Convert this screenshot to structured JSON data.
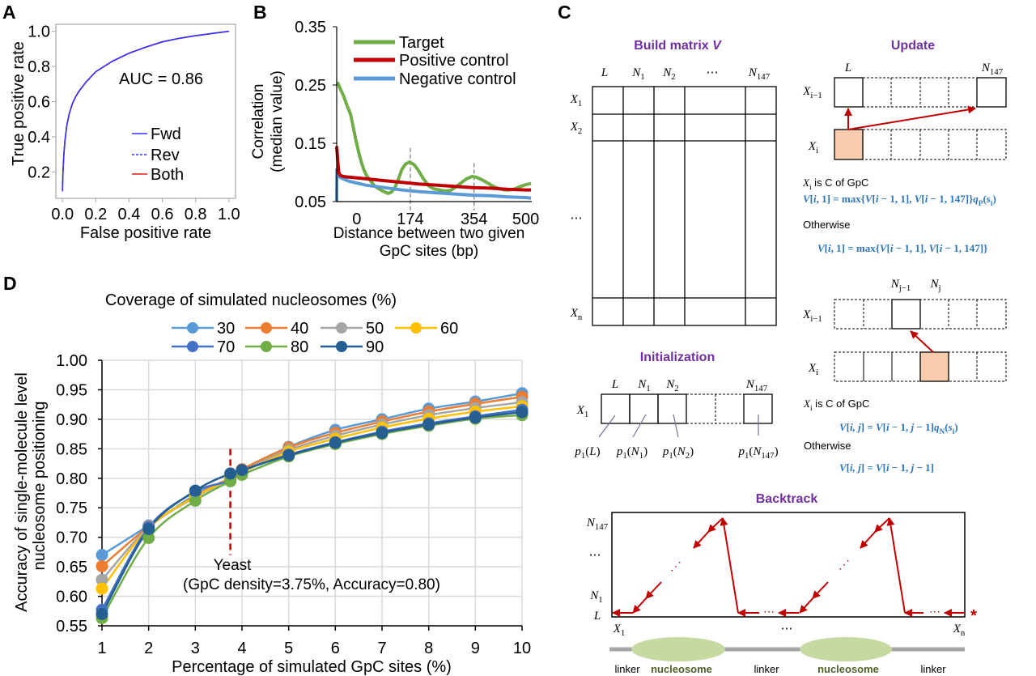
{
  "panel_labels": {
    "A": "A",
    "B": "B",
    "C": "C",
    "D": "D"
  },
  "chart_data": [
    {
      "panel": "A",
      "type": "line",
      "title": "",
      "xlabel": "False positive rate",
      "ylabel": "True positive rate",
      "xlim": [
        -0.04,
        1.04
      ],
      "ylim": [
        0.05,
        1.04
      ],
      "xticks": [
        0,
        0.2,
        0.4,
        0.6,
        0.8,
        1.0
      ],
      "xtick_labels": [
        "0.0",
        "0.2",
        "0.4",
        "0.6",
        "0.8",
        "1.0"
      ],
      "yticks": [
        0.2,
        0.4,
        0.6,
        0.8,
        1.0
      ],
      "ytick_labels": [
        "0.2",
        "0.4",
        "0.6",
        "0.8",
        "1.0"
      ],
      "grid": false,
      "annotation": "AUC = 0.86",
      "legend": {
        "placement": "center-right"
      },
      "series": [
        {
          "name": "Fwd",
          "color": "#3333FF",
          "style": "solid",
          "x": [
            0,
            0.003,
            0.008,
            0.015,
            0.025,
            0.04,
            0.06,
            0.08,
            0.1,
            0.14,
            0.2,
            0.3,
            0.4,
            0.5,
            0.6,
            0.7,
            0.8,
            0.9,
            1.0
          ],
          "y": [
            0.09,
            0.2,
            0.3,
            0.38,
            0.46,
            0.53,
            0.59,
            0.63,
            0.66,
            0.71,
            0.77,
            0.83,
            0.875,
            0.91,
            0.94,
            0.96,
            0.975,
            0.988,
            1.0
          ]
        },
        {
          "name": "Rev",
          "color": "#3333FF",
          "style": "dashed",
          "x": [
            0,
            0.003,
            0.008,
            0.015,
            0.025,
            0.04,
            0.06,
            0.08,
            0.1,
            0.14,
            0.2,
            0.3,
            0.4,
            0.5,
            0.6,
            0.7,
            0.8,
            0.9,
            1.0
          ],
          "y": [
            0.09,
            0.2,
            0.3,
            0.38,
            0.46,
            0.53,
            0.59,
            0.63,
            0.66,
            0.71,
            0.77,
            0.83,
            0.875,
            0.91,
            0.94,
            0.96,
            0.975,
            0.988,
            1.0
          ]
        },
        {
          "name": "Both",
          "color": "#E31A1C",
          "style": "solid",
          "x": [
            0,
            0.003,
            0.008,
            0.015,
            0.025,
            0.04,
            0.06,
            0.08,
            0.1,
            0.14,
            0.2,
            0.3,
            0.4,
            0.5,
            0.6,
            0.7,
            0.8,
            0.9,
            1.0
          ],
          "y": [
            0.09,
            0.2,
            0.3,
            0.38,
            0.46,
            0.53,
            0.59,
            0.63,
            0.66,
            0.71,
            0.77,
            0.83,
            0.875,
            0.91,
            0.94,
            0.96,
            0.975,
            0.988,
            1.0
          ]
        }
      ]
    },
    {
      "panel": "B",
      "type": "line",
      "title": "",
      "xlabel_lines": [
        "Distance between two given",
        "GpC sites (bp)"
      ],
      "ylabel_lines": [
        "Correlation",
        "(median value)"
      ],
      "xlim": [
        -34,
        517
      ],
      "ylim": [
        0.05,
        0.35
      ],
      "xticks": [
        0,
        174,
        354,
        500
      ],
      "xtick_labels": [
        "0",
        "174",
        "354",
        "500"
      ],
      "yticks": [
        0.05,
        0.15,
        0.25,
        0.35
      ],
      "ytick_labels": [
        "0.05",
        "0.15",
        "0.25",
        "0.35"
      ],
      "grid": false,
      "legend": {
        "placement": "top-left"
      },
      "reference_lines_x": [
        {
          "x": 174,
          "y_top": 0.142
        },
        {
          "x": 354,
          "y_top": 0.116
        }
      ],
      "series": [
        {
          "name": "Target",
          "color": "#70AD47",
          "x": [
            -32,
            -25,
            -15,
            -5,
            5,
            12,
            20,
            28,
            35,
            42,
            50,
            60,
            73,
            85,
            96,
            111,
            120,
            130,
            140,
            150,
            160,
            172,
            185,
            195,
            210,
            226,
            240,
            256,
            272,
            287,
            300,
            317,
            333,
            348,
            360,
            378,
            395,
            409,
            425,
            439,
            455,
            470,
            485,
            500,
            515
          ],
          "y": [
            0.255,
            0.245,
            0.232,
            0.215,
            0.2,
            0.18,
            0.156,
            0.135,
            0.119,
            0.106,
            0.095,
            0.087,
            0.077,
            0.072,
            0.068,
            0.064,
            0.066,
            0.073,
            0.088,
            0.105,
            0.114,
            0.118,
            0.113,
            0.105,
            0.09,
            0.077,
            0.072,
            0.07,
            0.068,
            0.069,
            0.074,
            0.082,
            0.089,
            0.093,
            0.092,
            0.087,
            0.081,
            0.076,
            0.072,
            0.07,
            0.07,
            0.072,
            0.076,
            0.079,
            0.081
          ]
        },
        {
          "name": "Negative control",
          "color": "#5B9BD5",
          "x": [
            -34,
            -33.5,
            -30,
            -25,
            -15,
            0,
            50,
            100,
            150,
            200,
            250,
            300,
            350,
            400,
            450,
            500,
            515
          ],
          "y": [
            0.05,
            0.105,
            0.097,
            0.092,
            0.089,
            0.085,
            0.078,
            0.074,
            0.07,
            0.067,
            0.065,
            0.063,
            0.061,
            0.06,
            0.058,
            0.057,
            0.056
          ]
        },
        {
          "name": "Positive control",
          "color": "#C00000",
          "x": [
            -34,
            -31,
            -28,
            -24,
            -15,
            0,
            50,
            100,
            150,
            200,
            250,
            300,
            350,
            400,
            450,
            500,
            515
          ],
          "y": [
            0.145,
            0.12,
            0.1,
            0.095,
            0.093,
            0.092,
            0.089,
            0.086,
            0.083,
            0.08,
            0.078,
            0.076,
            0.074,
            0.073,
            0.071,
            0.07,
            0.07
          ]
        }
      ],
      "legend_order": [
        "Target",
        "Positive control",
        "Negative control"
      ]
    },
    {
      "panel": "D",
      "type": "line",
      "title": "",
      "legend_title": "Coverage of simulated nucleosomes (%)",
      "xlabel": "Percentage of simulated GpC sites (%)",
      "ylabel_lines": [
        "Accuracy of single-molecule level",
        "nucleosome positioning"
      ],
      "xlim": [
        1,
        10
      ],
      "ylim": [
        0.55,
        1.0
      ],
      "xticks": [
        1,
        2,
        3,
        4,
        5,
        6,
        7,
        8,
        9,
        10
      ],
      "xtick_labels": [
        "1",
        "2",
        "3",
        "4",
        "5",
        "6",
        "7",
        "8",
        "9",
        "10"
      ],
      "yticks": [
        0.55,
        0.6,
        0.65,
        0.7,
        0.75,
        0.8,
        0.85,
        0.9,
        0.95,
        1.0
      ],
      "ytick_labels": [
        "0.55",
        "0.60",
        "0.65",
        "0.70",
        "0.75",
        "0.80",
        "0.85",
        "0.90",
        "0.95",
        "1.00"
      ],
      "grid": true,
      "legend": {
        "placement": "top"
      },
      "x": [
        1,
        2,
        3,
        3.75,
        4,
        5,
        6,
        7,
        8,
        9,
        10
      ],
      "series": [
        {
          "name": "30",
          "color": "#5B9BD5",
          "values": [
            0.67,
            0.72,
            0.772,
            0.8,
            0.815,
            0.853,
            0.882,
            0.9,
            0.918,
            0.93,
            0.944
          ]
        },
        {
          "name": "40",
          "color": "#ED7D31",
          "values": [
            0.651,
            0.718,
            0.77,
            0.801,
            0.815,
            0.852,
            0.877,
            0.896,
            0.913,
            0.926,
            0.938
          ]
        },
        {
          "name": "50",
          "color": "#A5A5A5",
          "values": [
            0.628,
            0.717,
            0.768,
            0.799,
            0.812,
            0.848,
            0.872,
            0.891,
            0.907,
            0.919,
            0.929
          ]
        },
        {
          "name": "60",
          "color": "#FFC000",
          "values": [
            0.613,
            0.716,
            0.769,
            0.799,
            0.81,
            0.845,
            0.867,
            0.886,
            0.901,
            0.913,
            0.922
          ]
        },
        {
          "name": "70",
          "color": "#4472C4",
          "values": [
            0.577,
            0.717,
            0.777,
            0.796,
            0.812,
            0.84,
            0.861,
            0.879,
            0.893,
            0.905,
            0.916
          ]
        },
        {
          "name": "80",
          "color": "#70AD47",
          "values": [
            0.563,
            0.699,
            0.762,
            0.795,
            0.806,
            0.837,
            0.858,
            0.875,
            0.889,
            0.901,
            0.907
          ]
        },
        {
          "name": "90",
          "color": "#255E91",
          "values": [
            0.57,
            0.714,
            0.779,
            0.808,
            0.814,
            0.839,
            0.86,
            0.877,
            0.891,
            0.903,
            0.912
          ]
        }
      ],
      "reference_line": {
        "x": 3.75,
        "y_range": [
          0.67,
          0.85
        ],
        "color": "#C00000"
      },
      "annotation_lines": [
        "Yeast",
        "(GpC density=3.75%, Accuracy=0.80)"
      ]
    }
  ],
  "diagram": {
    "build_matrix": {
      "title": "Build matrix ",
      "title_var": "V",
      "columns": [
        [
          {
            "i": "L"
          }
        ],
        [
          {
            "i": "N"
          },
          {
            "sub": "1"
          }
        ],
        [
          {
            "i": "N"
          },
          {
            "sub": "2"
          }
        ],
        [
          {
            "t": "⋯"
          }
        ],
        [
          {
            "i": "N"
          },
          {
            "sub": "147"
          }
        ]
      ],
      "rows": [
        [
          {
            "i": "X"
          },
          {
            "sub": "1"
          }
        ],
        [
          {
            "i": "X"
          },
          {
            "sub": "2"
          }
        ],
        [
          {
            "t": "⋯"
          }
        ],
        [
          {
            "i": "X"
          },
          {
            "sub": "n"
          }
        ]
      ]
    },
    "update": {
      "title": "Update",
      "linker_case": {
        "col_labels": [
          [
            {
              "i": "L"
            }
          ],
          [
            {
              "i": "N"
            },
            {
              "sub": "147"
            }
          ]
        ],
        "row_labels": [
          [
            {
              "i": "X"
            },
            {
              "sub": "i−1"
            }
          ],
          [
            {
              "i": "X"
            },
            {
              "sub": "i"
            }
          ]
        ],
        "condition": [
          {
            "i": "X"
          },
          {
            "sub": "i"
          },
          {
            "t": " is C of GpC"
          }
        ],
        "formula_gpc": [
          {
            "i": "V"
          },
          {
            "t": "["
          },
          {
            "i": "i"
          },
          {
            "t": ", 1] = max{"
          },
          {
            "i": "V"
          },
          {
            "t": "["
          },
          {
            "i": "i"
          },
          {
            "t": " − 1, 1], "
          },
          {
            "i": "V"
          },
          {
            "t": "["
          },
          {
            "i": "i"
          },
          {
            "t": " − 1, 147]}"
          },
          {
            "i": "q"
          },
          {
            "sub": "P"
          },
          {
            "t": "("
          },
          {
            "i": "s"
          },
          {
            "sub": "i"
          },
          {
            "t": ")"
          }
        ],
        "otherwise": "Otherwise",
        "formula_other": [
          {
            "i": "V"
          },
          {
            "t": "["
          },
          {
            "i": "i"
          },
          {
            "t": ", 1] = max{"
          },
          {
            "i": "V"
          },
          {
            "t": "["
          },
          {
            "i": "i"
          },
          {
            "t": " − 1, 1], "
          },
          {
            "i": "V"
          },
          {
            "t": "["
          },
          {
            "i": "i"
          },
          {
            "t": " − 1, 147]}"
          }
        ]
      },
      "nucleosome_case": {
        "col_labels": [
          [
            {
              "i": "N"
            },
            {
              "sub": "j−1"
            }
          ],
          [
            {
              "i": "N"
            },
            {
              "sub": "j"
            }
          ]
        ],
        "row_labels": [
          [
            {
              "i": "X"
            },
            {
              "sub": "i−1"
            }
          ],
          [
            {
              "i": "X"
            },
            {
              "sub": "i"
            }
          ]
        ],
        "condition": [
          {
            "i": "X"
          },
          {
            "sub": "i"
          },
          {
            "t": " is C of GpC"
          }
        ],
        "formula_gpc": [
          {
            "i": "V"
          },
          {
            "t": "["
          },
          {
            "i": "i, j"
          },
          {
            "t": "] = "
          },
          {
            "i": "V"
          },
          {
            "t": "["
          },
          {
            "i": "i"
          },
          {
            "t": " − 1, "
          },
          {
            "i": "j"
          },
          {
            "t": " − 1]"
          },
          {
            "i": "q"
          },
          {
            "sub": "N"
          },
          {
            "t": "("
          },
          {
            "i": "s"
          },
          {
            "sub": "i"
          },
          {
            "t": ")"
          }
        ],
        "otherwise": "Otherwise",
        "formula_other": [
          {
            "i": "V"
          },
          {
            "t": "["
          },
          {
            "i": "i, j"
          },
          {
            "t": "] = "
          },
          {
            "i": "V"
          },
          {
            "t": "["
          },
          {
            "i": "i"
          },
          {
            "t": " − 1, "
          },
          {
            "i": "j"
          },
          {
            "t": " − 1]"
          }
        ]
      }
    },
    "initialization": {
      "title": "Initialization",
      "col_labels": [
        [
          {
            "i": "L"
          }
        ],
        [
          {
            "i": "N"
          },
          {
            "sub": "1"
          }
        ],
        [
          {
            "i": "N"
          },
          {
            "sub": "2"
          }
        ],
        [
          {
            "i": "N"
          },
          {
            "sub": "147"
          }
        ]
      ],
      "row_label": [
        {
          "i": "X"
        },
        {
          "sub": "1"
        }
      ],
      "probabilities": [
        [
          {
            "i": "p"
          },
          {
            "sub": "1"
          },
          {
            "t": "("
          },
          {
            "i": "L"
          },
          {
            "t": ")"
          }
        ],
        [
          {
            "i": "p"
          },
          {
            "sub": "1"
          },
          {
            "t": "("
          },
          {
            "i": "N"
          },
          {
            "sub": "1"
          },
          {
            "t": ")"
          }
        ],
        [
          {
            "i": "p"
          },
          {
            "sub": "1"
          },
          {
            "t": "("
          },
          {
            "i": "N"
          },
          {
            "sub": "2"
          },
          {
            "t": ")"
          }
        ],
        [
          {
            "i": "p"
          },
          {
            "sub": "1"
          },
          {
            "t": "("
          },
          {
            "i": "N"
          },
          {
            "sub": "147"
          },
          {
            "t": ")"
          }
        ]
      ]
    },
    "backtrack": {
      "title": "Backtrack",
      "y_labels": [
        [
          {
            "i": "N"
          },
          {
            "sub": "147"
          }
        ],
        [
          {
            "t": "⋯"
          }
        ],
        [
          {
            "i": "N"
          },
          {
            "sub": "1"
          }
        ],
        [
          {
            "i": "L"
          }
        ]
      ],
      "x_labels": [
        [
          {
            "i": "X"
          },
          {
            "sub": "1"
          }
        ],
        [
          {
            "t": "⋯"
          }
        ],
        [
          {
            "i": "X"
          },
          {
            "sub": "n"
          }
        ]
      ],
      "ellipsis_h": "⋯",
      "ellipsis_diag": "⋰",
      "start_marker": "*",
      "track_labels": [
        "linker",
        "nucleosome",
        "linker",
        "nucleosome",
        "linker"
      ],
      "colors": {
        "arrow": "#C00000",
        "nucleosome": "#C5D9A0",
        "linker": "#A6A6A6"
      }
    }
  }
}
